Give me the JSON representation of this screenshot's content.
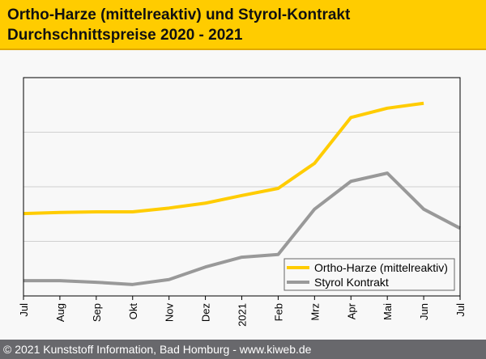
{
  "header": {
    "title_line1": "Ortho-Harze (mittelreaktiv) und Styrol-Kontrakt",
    "title_line2": "Durchschnittspreise 2020 - 2021"
  },
  "footer": {
    "text": "© 2021 Kunststoff Information, Bad Homburg - www.kiweb.de"
  },
  "chart_data": {
    "type": "line",
    "title": "Ortho-Harze (mittelreaktiv) und Styrol-Kontrakt Durchschnittspreise 2020 - 2021",
    "xlabel": "",
    "ylabel": "",
    "y_axis_labels_shown": false,
    "ylim": [
      0,
      400
    ],
    "grid": true,
    "legend_position": "bottom-right",
    "categories": [
      "Jul",
      "Aug",
      "Sep",
      "Okt",
      "Nov",
      "Dez",
      "2021",
      "Feb",
      "Mrz",
      "Apr",
      "Mai",
      "Jun",
      "Jul"
    ],
    "series": [
      {
        "name": "Ortho-Harze (mittelreaktiv)",
        "color": "#ffcc00",
        "values": [
          151,
          153,
          154,
          154,
          161,
          170,
          184,
          197,
          243,
          327,
          344,
          353,
          null
        ]
      },
      {
        "name": "Styrol Kontrakt",
        "color": "#999999",
        "values": [
          28,
          28,
          25,
          21,
          30,
          53,
          71,
          76,
          159,
          210,
          225,
          159,
          124
        ]
      }
    ]
  }
}
